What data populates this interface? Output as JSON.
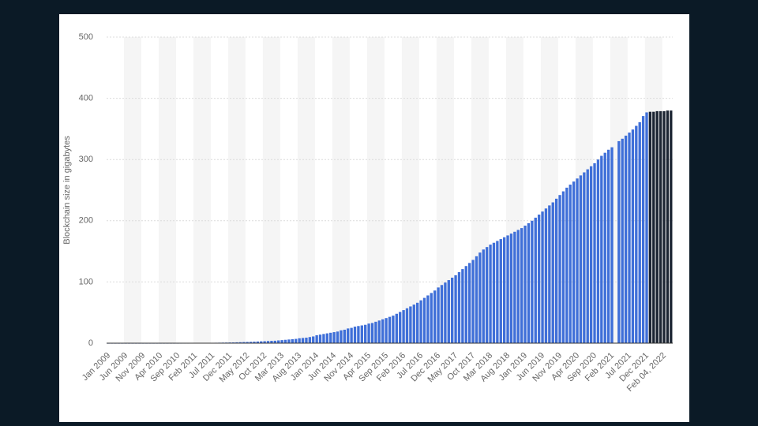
{
  "chart_data": {
    "type": "bar",
    "y_label": "Blockchain size in gigabytes",
    "categories": [
      "Jan 2009",
      null,
      null,
      null,
      null,
      "Jun 2009",
      null,
      null,
      null,
      null,
      "Nov 2009",
      null,
      null,
      null,
      null,
      "Apr 2010",
      null,
      null,
      null,
      null,
      "Sep 2010",
      null,
      null,
      null,
      null,
      "Feb 2011",
      null,
      null,
      null,
      null,
      "Jul 2011",
      null,
      null,
      null,
      null,
      "Dec 2011",
      null,
      null,
      null,
      null,
      "May 2012",
      null,
      null,
      null,
      null,
      "Oct 2012",
      null,
      null,
      null,
      null,
      "Mar 2013",
      null,
      null,
      null,
      null,
      "Aug 2013",
      null,
      null,
      null,
      null,
      "Jan 2014",
      null,
      null,
      null,
      null,
      "Jun 2014",
      null,
      null,
      null,
      null,
      "Nov 2014",
      null,
      null,
      null,
      null,
      "Apr 2015",
      null,
      null,
      null,
      null,
      "Sep 2015",
      null,
      null,
      null,
      null,
      "Feb 2016",
      null,
      null,
      null,
      null,
      "Jul 2016",
      null,
      null,
      null,
      null,
      "Dec 2016",
      null,
      null,
      null,
      null,
      "May 2017",
      null,
      null,
      null,
      null,
      "Oct 2017",
      null,
      null,
      null,
      null,
      "Mar 2018",
      null,
      null,
      null,
      null,
      "Aug 2018",
      null,
      null,
      null,
      null,
      "Jan 2019",
      null,
      null,
      null,
      null,
      "Jun 2019",
      null,
      null,
      null,
      null,
      "Nov 2019",
      null,
      null,
      null,
      null,
      "Apr 2020",
      null,
      null,
      null,
      null,
      "Sep 2020",
      null,
      null,
      null,
      null,
      "Feb 2021",
      null,
      null,
      null,
      null,
      "Jul 2021",
      null,
      null,
      null,
      null,
      "Dec 2021",
      null,
      null,
      null,
      null,
      "Feb 04, 2022",
      null,
      null
    ],
    "series": [
      {
        "color": "#3f6fd8",
        "values": [
          0,
          0,
          0,
          0,
          0,
          0,
          0,
          0,
          0,
          0,
          0,
          0,
          0.01,
          0.01,
          0.02,
          0.02,
          0.03,
          0.03,
          0.04,
          0.05,
          0.06,
          0.08,
          0.1,
          0.1,
          0.2,
          0.2,
          0.3,
          0.3,
          0.4,
          0.5,
          0.6,
          0.7,
          0.8,
          0.9,
          1,
          1.1,
          1.2,
          1.4,
          1.6,
          1.8,
          2,
          2.2,
          2.4,
          2.7,
          3,
          3.2,
          3.5,
          3.8,
          4,
          4.5,
          5,
          5.5,
          6,
          6.5,
          7,
          8,
          8.5,
          9,
          10,
          11,
          13,
          14,
          15,
          16,
          17,
          18,
          19,
          21,
          22,
          24,
          25,
          27,
          28,
          29,
          30,
          32,
          33,
          35,
          37,
          39,
          41,
          43,
          45,
          48,
          51,
          54,
          57,
          60,
          63,
          66,
          70,
          74,
          78,
          82,
          86,
          91,
          95,
          99,
          103,
          107,
          111,
          116,
          121,
          126,
          131,
          136,
          142,
          148,
          153,
          157,
          161,
          164,
          167,
          170,
          173,
          176,
          179,
          182,
          185,
          188,
          192,
          196,
          200,
          205,
          210,
          215,
          220,
          225,
          230,
          236,
          242,
          248,
          254,
          259,
          264,
          269,
          274,
          279,
          284,
          289,
          294,
          300,
          306,
          311,
          316,
          320,
          null,
          330,
          334,
          339,
          344,
          349,
          355,
          361,
          371,
          377,
          null,
          null,
          null,
          null,
          null,
          null,
          null
        ]
      },
      {
        "color": "#1c2533",
        "values": [
          null,
          null,
          null,
          null,
          null,
          null,
          null,
          null,
          null,
          null,
          null,
          null,
          null,
          null,
          null,
          null,
          null,
          null,
          null,
          null,
          null,
          null,
          null,
          null,
          null,
          null,
          null,
          null,
          null,
          null,
          null,
          null,
          null,
          null,
          null,
          null,
          null,
          null,
          null,
          null,
          null,
          null,
          null,
          null,
          null,
          null,
          null,
          null,
          null,
          null,
          null,
          null,
          null,
          null,
          null,
          null,
          null,
          null,
          null,
          null,
          null,
          null,
          null,
          null,
          null,
          null,
          null,
          null,
          null,
          null,
          null,
          null,
          null,
          null,
          null,
          null,
          null,
          null,
          null,
          null,
          null,
          null,
          null,
          null,
          null,
          null,
          null,
          null,
          null,
          null,
          null,
          null,
          null,
          null,
          null,
          null,
          null,
          null,
          null,
          null,
          null,
          null,
          null,
          null,
          null,
          null,
          null,
          null,
          null,
          null,
          null,
          null,
          null,
          null,
          null,
          null,
          null,
          null,
          null,
          null,
          null,
          null,
          null,
          null,
          null,
          null,
          null,
          null,
          null,
          null,
          null,
          null,
          null,
          null,
          null,
          null,
          null,
          null,
          null,
          null,
          null,
          null,
          null,
          null,
          null,
          null,
          null,
          null,
          null,
          null,
          null,
          null,
          null,
          null,
          null,
          null,
          378,
          378,
          379,
          379,
          379,
          380,
          380
        ]
      }
    ],
    "ylim": [
      0,
      500
    ],
    "yticks": [
      0,
      100,
      200,
      300,
      400,
      500
    ],
    "grid": true
  }
}
